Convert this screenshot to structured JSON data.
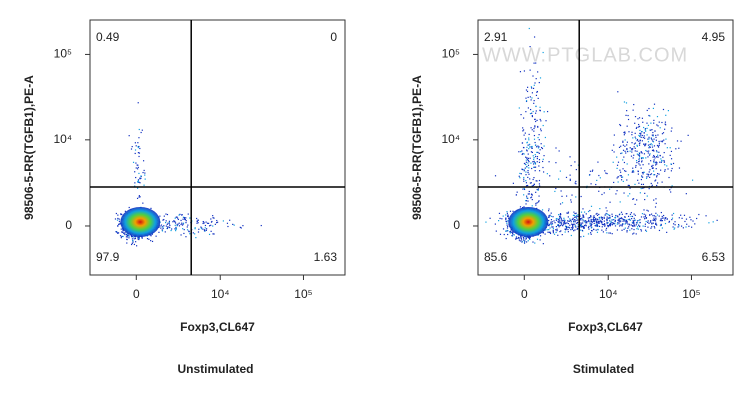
{
  "chart_data": [
    {
      "type": "flow-quadrant",
      "title": "Unstimulated",
      "xlabel": "Foxp3,CL647",
      "ylabel": "98506-5-RR(TGFB1),PE-A",
      "xlim": [
        -3300,
        314000
      ],
      "ylim": [
        -3460,
        252000
      ],
      "xticks": [
        0,
        {
          "value": 10000,
          "label": "10⁴"
        },
        {
          "value": 100000,
          "label": "10⁵"
        }
      ],
      "yticks": [
        0,
        {
          "value": 10000,
          "label": "10⁴"
        },
        {
          "value": 100000,
          "label": "10⁵"
        }
      ],
      "gates": {
        "x": 4320,
        "y": 2500
      },
      "quadrants": {
        "top_left": 0.49,
        "top_right": 0,
        "bottom_left": 97.9,
        "bottom_right": 1.63
      }
    },
    {
      "type": "flow-quadrant",
      "title": "Stimulated",
      "xlabel": "Foxp3,CL647",
      "ylabel": "98506-5-RR(TGFB1),PE-A",
      "xlim": [
        -3300,
        314000
      ],
      "ylim": [
        -3460,
        252000
      ],
      "xticks": [
        0,
        {
          "value": 10000,
          "label": "10⁴"
        },
        {
          "value": 100000,
          "label": "10⁵"
        }
      ],
      "yticks": [
        0,
        {
          "value": 10000,
          "label": "10⁴"
        },
        {
          "value": 100000,
          "label": "10⁵"
        }
      ],
      "gates": {
        "x": 4320,
        "y": 2500
      },
      "quadrants": {
        "top_left": 2.91,
        "top_right": 4.95,
        "bottom_left": 85.6,
        "bottom_right": 6.53
      },
      "watermark": "WWW.PTGLAB.COM"
    }
  ]
}
